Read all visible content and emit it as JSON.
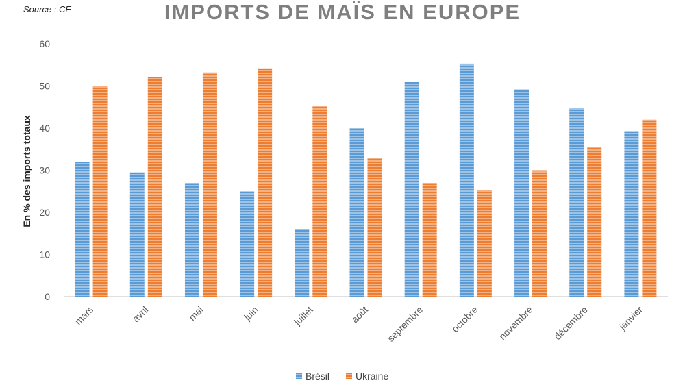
{
  "source": "Source : CE",
  "chart_data": {
    "type": "bar",
    "title": "IMPORTS DE MAÏS EN EUROPE",
    "xlabel": "",
    "ylabel": "En % des imports totaux",
    "ylim": [
      0,
      60
    ],
    "yticks": [
      0,
      10,
      20,
      30,
      40,
      50,
      60
    ],
    "categories": [
      "mars",
      "avril",
      "mai",
      "juin",
      "juillet",
      "août",
      "septembre",
      "octobre",
      "novembre",
      "décembre",
      "janvier"
    ],
    "series": [
      {
        "name": "Brésil",
        "color": "#5b9bd5",
        "values": [
          32,
          29.5,
          27,
          25,
          16,
          40,
          51,
          55.3,
          49.2,
          44.7,
          39.3
        ]
      },
      {
        "name": "Ukraine",
        "color": "#ed7d31",
        "values": [
          50,
          52.2,
          53.2,
          54.2,
          45.2,
          33,
          27,
          25.3,
          30,
          35.6,
          42
        ]
      }
    ],
    "legend": "bottom",
    "grid": false
  }
}
